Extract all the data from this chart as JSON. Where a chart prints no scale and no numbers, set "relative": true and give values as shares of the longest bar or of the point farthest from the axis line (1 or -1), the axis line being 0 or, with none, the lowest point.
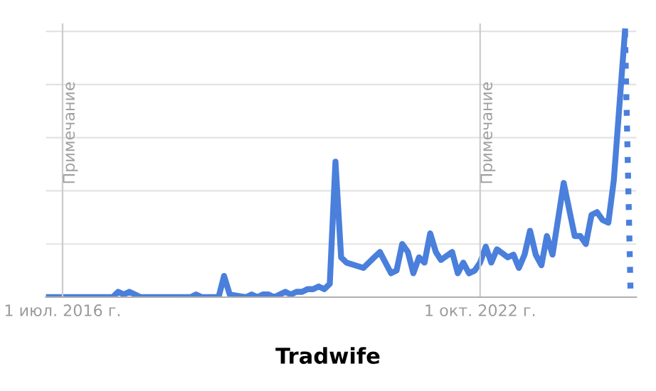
{
  "chart_data": {
    "type": "line",
    "title": "Tradwife",
    "relative": true,
    "x": [
      "2016-04",
      "2016-07",
      "2017-04",
      "2017-05",
      "2017-06",
      "2017-07",
      "2017-09",
      "2018-06",
      "2018-07",
      "2018-08",
      "2018-11",
      "2018-12",
      "2019-01",
      "2019-04",
      "2019-05",
      "2019-06",
      "2019-07",
      "2019-08",
      "2019-09",
      "2019-11",
      "2019-12",
      "2020-01",
      "2020-02",
      "2020-03",
      "2020-04",
      "2020-05",
      "2020-06",
      "2020-07",
      "2020-08",
      "2020-09",
      "2020-10",
      "2021-01",
      "2021-03",
      "2021-04",
      "2021-06",
      "2021-07",
      "2021-08",
      "2021-09",
      "2021-10",
      "2021-11",
      "2021-12",
      "2022-01",
      "2022-02",
      "2022-03",
      "2022-05",
      "2022-06",
      "2022-07",
      "2022-08",
      "2022-09",
      "2022-10",
      "2022-11",
      "2022-12",
      "2023-01",
      "2023-03",
      "2023-04",
      "2023-05",
      "2023-06",
      "2023-07",
      "2023-08",
      "2023-09",
      "2023-10",
      "2023-11",
      "2024-01",
      "2024-03",
      "2024-04",
      "2024-05",
      "2024-06",
      "2024-07",
      "2024-08",
      "2024-09",
      "2024-10",
      "2024-12"
    ],
    "series": [
      {
        "color": "#4a7fdc",
        "line_style": "solid",
        "values": [
          0,
          0,
          0,
          0.02,
          0.01,
          0.02,
          0,
          0,
          0.01,
          0,
          0,
          0.08,
          0.01,
          0,
          0.01,
          0,
          0.01,
          0.01,
          0,
          0.02,
          0.01,
          0.02,
          0.02,
          0.03,
          0.03,
          0.04,
          0.03,
          0.05,
          0.51,
          0.15,
          0.13,
          0.11,
          0.15,
          0.17,
          0.09,
          0.1,
          0.2,
          0.17,
          0.09,
          0.15,
          0.13,
          0.24,
          0.17,
          0.14,
          0.17,
          0.09,
          0.13,
          0.09,
          0.1,
          0.13,
          0.19,
          0.13,
          0.18,
          0.15,
          0.16,
          0.11,
          0.16,
          0.25,
          0.16,
          0.12,
          0.23,
          0.16,
          0.43,
          0.23,
          0.23,
          0.2,
          0.31,
          0.32,
          0.29,
          0.28,
          0.44,
          1.0
        ]
      },
      {
        "color": "#4a7fdc",
        "line_style": "dotted",
        "x": [
          "2024-12",
          "2025-01"
        ],
        "values": [
          1.0,
          0
        ]
      }
    ],
    "xlim": [
      "2016-04",
      "2025-02"
    ],
    "xticks": [
      {
        "value": "2016-07",
        "label": "1 июл. 2016 г."
      },
      {
        "value": "2022-10",
        "label": "1 окт. 2022 г."
      }
    ],
    "ref_lines": [
      {
        "axis": "x",
        "value": "2016-07",
        "label": "Примечание",
        "color": "#cccccc"
      },
      {
        "axis": "x",
        "value": "2022-10",
        "label": "Примечание",
        "color": "#cccccc"
      }
    ],
    "grid": "y",
    "legend": false,
    "marker": "none"
  }
}
